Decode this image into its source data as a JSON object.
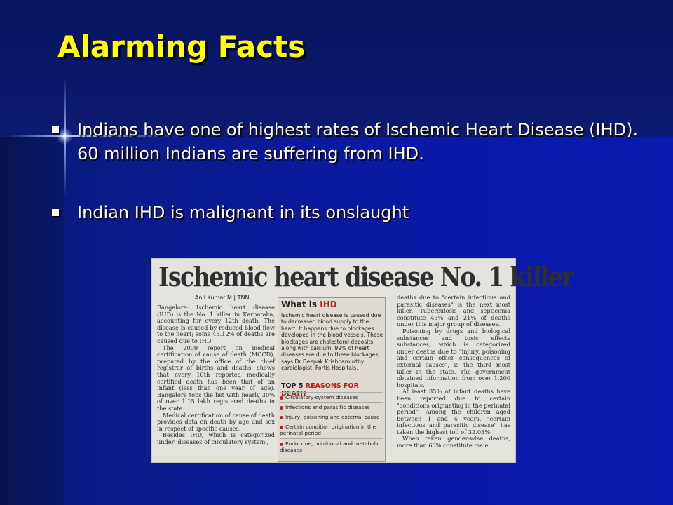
{
  "slide": {
    "title": "Alarming Facts",
    "bullets": [
      "Indians have one of highest rates of Ischemic Heart Disease (IHD). 60 million Indians are suffering from IHD.",
      "Indian IHD is malignant in its onslaught"
    ]
  },
  "clipping": {
    "headline": "Ischemic heart disease No. 1 killer",
    "byline": "Anil Kumar M | TNN",
    "column1": [
      "Bangalore: Ischemic heart disease (IHD) is the No. 1 killer in Karnataka, accounting for every 12th death. The disease is caused by reduced blood flow to the heart; some 43.12% of deaths are caused due to IHD.",
      "The 2009 report on medical certification of cause of death (MCCD), prepared by the office of the chief registrar of births and deaths, shows that every 10th reported medically certified death has been that of an infant (less than one year of age). Bangalore tops the list with nearly 30% of over 1.15 lakh registered deaths in the state.",
      "Medical certification of cause of death provides data on death by age and sex in respect of specific causes.",
      "Besides IHD, which is categorized under 'diseases of circulatory system',"
    ],
    "box_title_prefix": "What is",
    "box_title_highlight": "IHD",
    "box_text": "Ischemic heart disease is caused due to decreased blood supply to the heart. It happens due to blockages developed in the blood vessels. These blockages are cholesterol deposits along with calcium; 99% of heart diseases are due to these blockages, says Dr Deepak Krishnamurthy, cardiologist, Fortis Hospitals.",
    "reasons_title_prefix": "TOP 5",
    "reasons_title_highlight": "REASONS FOR DEATH",
    "reasons": [
      "Circulatory-system diseases",
      "Infections and parasitic diseases",
      "Injury, poisoning and external cause",
      "Certain condition origination in the perinatal period",
      "Endocrine, nutritional and metabolic diseases"
    ],
    "column3": [
      "deaths due to \"certain infectious and parasitic diseases\" is the next most killer. Tuberculosis and septicimia constitute 43% and 21% of deaths under this major group of diseases.",
      "Poisoning by drugs and biological substances and toxic effects substances, which is categorized under deaths due to \"injury, poisoning and certain other consequences of external causes\", is the third most killer in the state. The government obtained information from over 1,200 hospitals.",
      "At least 85% of infant deaths have been reported due to certain \"conditions originating in the perinatal period\". Among the children aged between 1 and 4 years, \"certain infectious and parasitic disease\" has taken the highest toll of 32.03%.",
      "When taken gender-wise deaths, more than 63% constitute male."
    ]
  },
  "colors": {
    "title": "#ffff00",
    "text": "#ffffff",
    "background": "#0b1a8a",
    "highlight_red": "#c41a1a"
  }
}
